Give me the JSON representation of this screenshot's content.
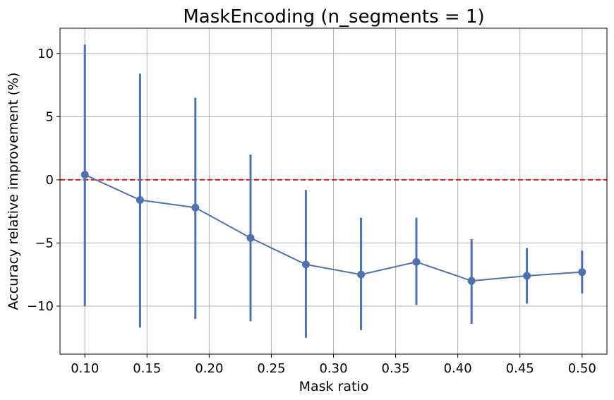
{
  "chart_data": {
    "type": "line",
    "title": "MaskEncoding (n_segments = 1)",
    "xlabel": "Mask ratio",
    "ylabel": "Accuracy relative improvement (%)",
    "xlim": [
      0.08,
      0.52
    ],
    "ylim": [
      -13.8,
      12
    ],
    "xticks": [
      0.1,
      0.15,
      0.2,
      0.25,
      0.3,
      0.35,
      0.4,
      0.45,
      0.5
    ],
    "xtick_labels": [
      "0.10",
      "0.15",
      "0.20",
      "0.25",
      "0.30",
      "0.35",
      "0.40",
      "0.45",
      "0.50"
    ],
    "yticks": [
      -10,
      -5,
      0,
      5,
      10
    ],
    "ytick_labels": [
      "−10",
      "−5",
      "0",
      "5",
      "10"
    ],
    "grid": true,
    "series": [
      {
        "color": "#4c72b0",
        "x": [
          0.1,
          0.1444,
          0.1889,
          0.2333,
          0.2778,
          0.3222,
          0.3667,
          0.4111,
          0.4556,
          0.5
        ],
        "y": [
          0.4,
          -1.6,
          -2.2,
          -4.6,
          -6.7,
          -7.5,
          -6.5,
          -8.0,
          -7.6,
          -7.3
        ],
        "err_low": [
          -10.0,
          -11.7,
          -11.0,
          -11.2,
          -12.5,
          -11.9,
          -9.9,
          -11.4,
          -9.8,
          -9.0
        ],
        "err_high": [
          10.7,
          8.4,
          6.5,
          2.0,
          -0.8,
          -3.0,
          -3.0,
          -4.7,
          -5.4,
          -5.6
        ]
      }
    ],
    "reference_line": {
      "y": 0,
      "color": "#e41a1c",
      "style": "dashed"
    }
  }
}
